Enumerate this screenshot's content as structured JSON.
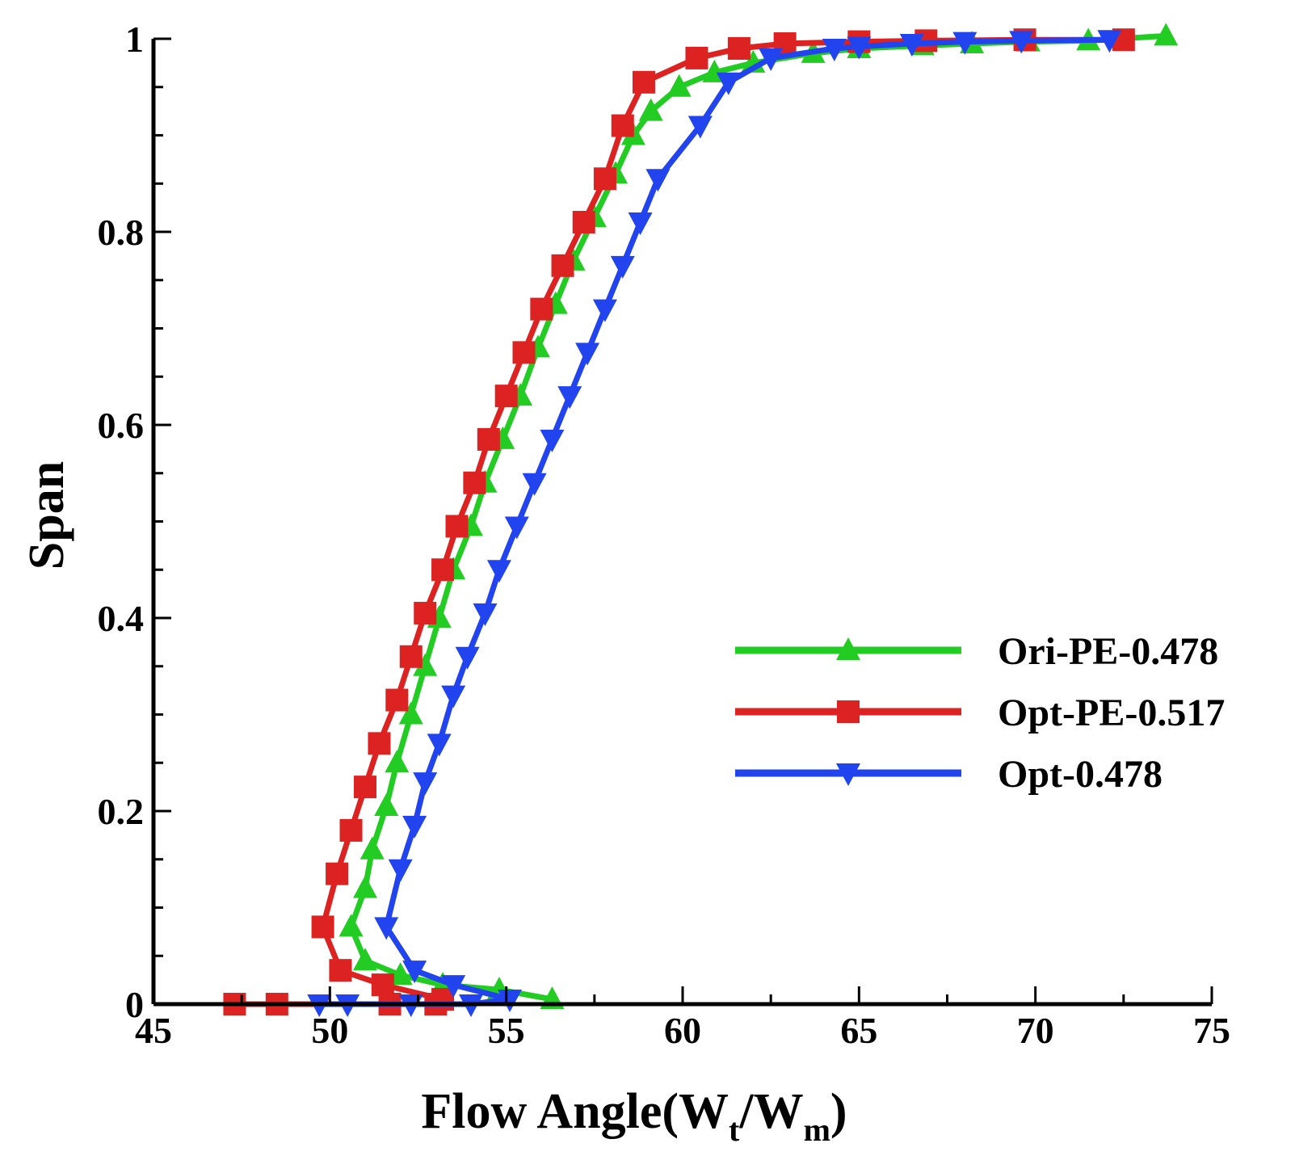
{
  "chart_data": {
    "type": "line",
    "title": "",
    "xlabel": "Flow Angle(W",
    "xlabel_sub1": "t",
    "xlabel_mid": "/W",
    "xlabel_sub2": "m",
    "xlabel_end": ")",
    "ylabel": "Span",
    "xlim": [
      45,
      75
    ],
    "ylim": [
      0,
      1
    ],
    "xticks": [
      "45",
      "50",
      "55",
      "60",
      "65",
      "70",
      "75"
    ],
    "yticks": [
      "0",
      "0.2",
      "0.4",
      "0.6",
      "0.8",
      "1"
    ],
    "legend_position": "center-right",
    "series": [
      {
        "name": "Ori-PE-0.478",
        "color": "#22cc22",
        "marker": "triangle-up",
        "points": [
          [
            56.3,
            0.005
          ],
          [
            54.8,
            0.015
          ],
          [
            53.2,
            0.02
          ],
          [
            52.0,
            0.03
          ],
          [
            51.0,
            0.045
          ],
          [
            50.6,
            0.08
          ],
          [
            51.0,
            0.12
          ],
          [
            51.2,
            0.16
          ],
          [
            51.6,
            0.205
          ],
          [
            51.9,
            0.25
          ],
          [
            52.3,
            0.3
          ],
          [
            52.7,
            0.35
          ],
          [
            53.1,
            0.4
          ],
          [
            53.5,
            0.45
          ],
          [
            54.0,
            0.495
          ],
          [
            54.4,
            0.54
          ],
          [
            54.9,
            0.585
          ],
          [
            55.4,
            0.63
          ],
          [
            55.9,
            0.68
          ],
          [
            56.4,
            0.725
          ],
          [
            56.9,
            0.77
          ],
          [
            57.5,
            0.815
          ],
          [
            58.1,
            0.86
          ],
          [
            58.6,
            0.9
          ],
          [
            59.1,
            0.925
          ],
          [
            59.9,
            0.95
          ],
          [
            60.9,
            0.965
          ],
          [
            62.0,
            0.975
          ],
          [
            63.7,
            0.985
          ],
          [
            65.0,
            0.99
          ],
          [
            66.8,
            0.993
          ],
          [
            68.2,
            0.995
          ],
          [
            69.8,
            0.997
          ],
          [
            71.5,
            0.998
          ],
          [
            73.7,
            1.003
          ]
        ]
      },
      {
        "name": "Opt-PE-0.517",
        "color": "#dd2222",
        "marker": "square",
        "points": [
          [
            47.3,
            0.0
          ],
          [
            48.5,
            0.0
          ],
          [
            51.7,
            0.0
          ],
          [
            53.0,
            0.0
          ],
          [
            53.2,
            0.005
          ],
          [
            51.5,
            0.02
          ],
          [
            50.3,
            0.035
          ],
          [
            49.8,
            0.08
          ],
          [
            50.2,
            0.135
          ],
          [
            50.6,
            0.18
          ],
          [
            51.0,
            0.225
          ],
          [
            51.4,
            0.27
          ],
          [
            51.9,
            0.315
          ],
          [
            52.3,
            0.36
          ],
          [
            52.7,
            0.405
          ],
          [
            53.2,
            0.45
          ],
          [
            53.6,
            0.495
          ],
          [
            54.1,
            0.54
          ],
          [
            54.5,
            0.585
          ],
          [
            55.0,
            0.63
          ],
          [
            55.5,
            0.675
          ],
          [
            56.0,
            0.72
          ],
          [
            56.6,
            0.765
          ],
          [
            57.2,
            0.81
          ],
          [
            57.8,
            0.855
          ],
          [
            58.3,
            0.91
          ],
          [
            58.9,
            0.955
          ],
          [
            60.4,
            0.98
          ],
          [
            61.6,
            0.99
          ],
          [
            62.9,
            0.995
          ],
          [
            65.0,
            0.997
          ],
          [
            66.9,
            0.998
          ],
          [
            69.7,
            0.999
          ],
          [
            72.5,
            0.999
          ]
        ]
      },
      {
        "name": "Opt-0.478",
        "color": "#2244ee",
        "marker": "triangle-down",
        "points": [
          [
            49.7,
            0.0
          ],
          [
            50.5,
            0.0
          ],
          [
            52.3,
            0.0
          ],
          [
            54.0,
            0.0
          ],
          [
            55.1,
            0.005
          ],
          [
            53.5,
            0.02
          ],
          [
            52.4,
            0.035
          ],
          [
            51.6,
            0.08
          ],
          [
            52.0,
            0.14
          ],
          [
            52.4,
            0.185
          ],
          [
            52.7,
            0.23
          ],
          [
            53.1,
            0.27
          ],
          [
            53.5,
            0.32
          ],
          [
            53.9,
            0.36
          ],
          [
            54.4,
            0.405
          ],
          [
            54.8,
            0.45
          ],
          [
            55.3,
            0.495
          ],
          [
            55.8,
            0.54
          ],
          [
            56.3,
            0.585
          ],
          [
            56.8,
            0.63
          ],
          [
            57.3,
            0.675
          ],
          [
            57.8,
            0.72
          ],
          [
            58.3,
            0.765
          ],
          [
            58.8,
            0.81
          ],
          [
            59.3,
            0.855
          ],
          [
            60.5,
            0.91
          ],
          [
            61.3,
            0.955
          ],
          [
            62.5,
            0.98
          ],
          [
            64.3,
            0.99
          ],
          [
            65.0,
            0.992
          ],
          [
            66.5,
            0.995
          ],
          [
            68.0,
            0.997
          ],
          [
            69.6,
            0.998
          ],
          [
            72.1,
            0.999
          ]
        ]
      }
    ]
  }
}
